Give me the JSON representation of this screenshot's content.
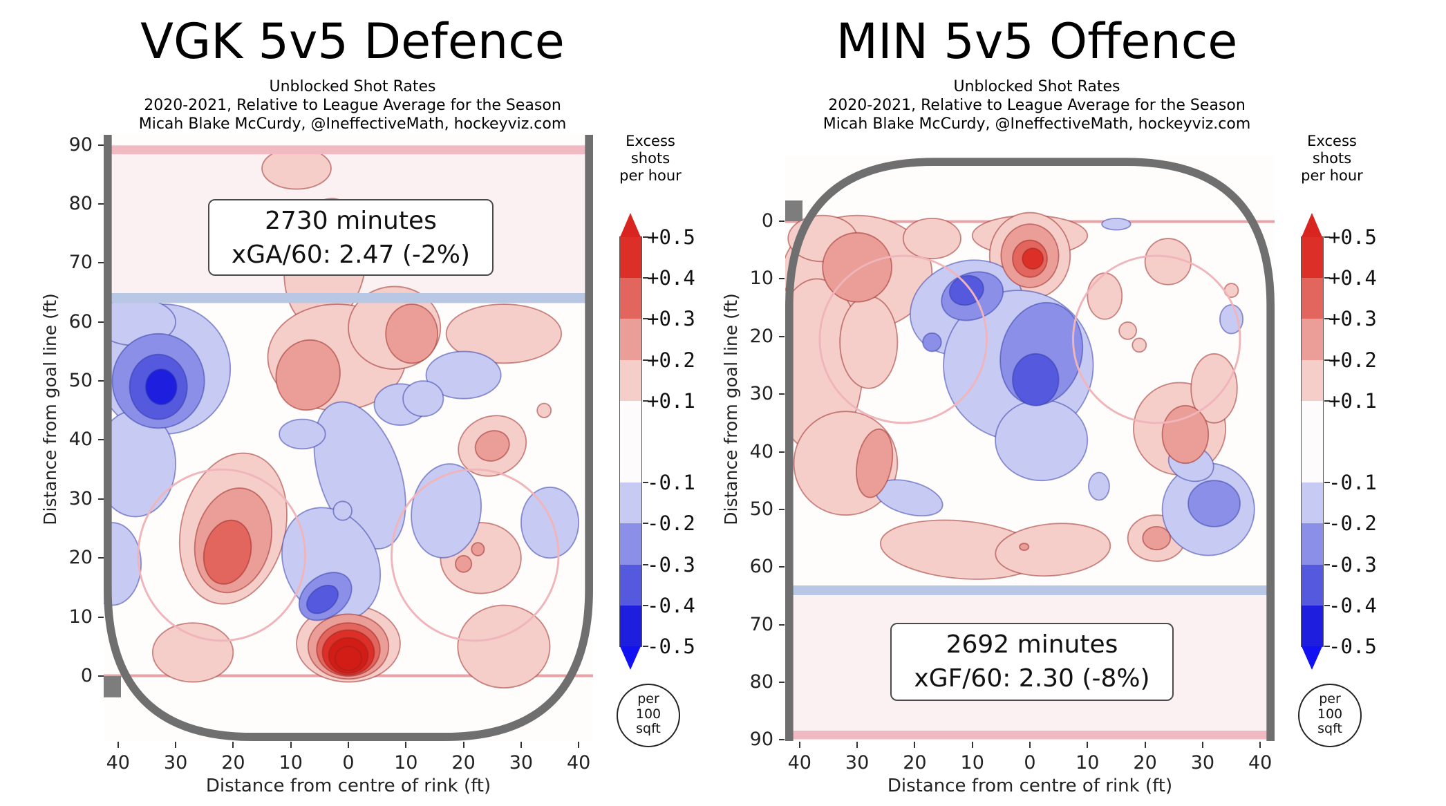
{
  "colorbar": {
    "title_lines": [
      "Excess",
      "shots",
      "per hour"
    ],
    "tick_labels": [
      "+0.5",
      "+0.4",
      "+0.3",
      "+0.2",
      "+0.1",
      "-0.1",
      "-0.2",
      "-0.3",
      "-0.4",
      "-0.5"
    ],
    "segment_colors_top_to_bottom": [
      "#dc2f28",
      "#e2655e",
      "#eb9d98",
      "#f5cdc9",
      "#fdfbfb",
      "#c7caf2",
      "#8b8fe8",
      "#5559de",
      "#1e1ede"
    ],
    "arrow_top_color": "#d8251f",
    "arrow_bottom_color": "#1111f2",
    "footer_lines": [
      "per",
      "100",
      "sqft"
    ]
  },
  "chart_data": {
    "type": "heatmap",
    "units": "excess unblocked shots per hour per 100 sqft, relative to league average",
    "level_scale": "hotspot level n covers roughly +/-0.1*n to 0.1*(n+1) excess shots per hour; positive = red (more shots), negative = blue (fewer shots)",
    "level_colors": {
      "1": "#f5cdc9",
      "2": "#eb9d98",
      "3": "#e2655e",
      "4": "#dc2f28",
      "5": "#d11d16",
      "-1": "#c7caf2",
      "-2": "#8b8fe8",
      "-3": "#5559de",
      "-4": "#1e1ede",
      "-5": "#1111f2"
    },
    "panels": [
      {
        "title": "VGK 5v5 Defence",
        "subtitle_lines": [
          "Unblocked Shot Rates",
          "2020-2021, Relative to League Average for the Season",
          "Micah Blake McCurdy, @IneffectiveMath, hockeyviz.com"
        ],
        "annotation_lines": [
          "2730 minutes",
          "xGA/60: 2.47 (-2%)"
        ],
        "minutes": 2730,
        "xg_per_60": 2.47,
        "xg_vs_league_pct": "-2%",
        "orientation": "goal-at-bottom",
        "xlabel": "Distance from centre of rink (ft)",
        "ylabel": "Distance from goal line (ft)",
        "x_ticks": [
          -40,
          -30,
          -20,
          -10,
          0,
          10,
          20,
          30,
          40
        ],
        "x_tick_labels": [
          "40",
          "30",
          "20",
          "10",
          "0",
          "10",
          "20",
          "30",
          "40"
        ],
        "y_ticks": [
          90,
          80,
          70,
          60,
          50,
          40,
          30,
          20,
          10,
          0
        ],
        "hotspots": [
          [
            -9,
            86,
            6,
            3.5,
            0,
            1
          ],
          [
            -4,
            70,
            7,
            11,
            10,
            1
          ],
          [
            -2,
            54,
            12,
            9,
            0,
            1
          ],
          [
            8,
            59,
            8,
            7,
            0,
            1
          ],
          [
            27,
            58,
            10,
            5,
            0,
            1
          ],
          [
            -20,
            25,
            9,
            13,
            15,
            1
          ],
          [
            23,
            20,
            7,
            6,
            0,
            1
          ],
          [
            25,
            39,
            6,
            5,
            -20,
            1
          ],
          [
            1,
            42,
            1.5,
            1.5,
            0,
            1
          ],
          [
            -27,
            4,
            7,
            5,
            0,
            1
          ],
          [
            27,
            5,
            8,
            7,
            0,
            1
          ],
          [
            34,
            45,
            1.2,
            1.2,
            0,
            1
          ],
          [
            0,
            5.5,
            9,
            6.5,
            0,
            1
          ],
          [
            -7,
            51,
            5.5,
            6,
            20,
            2
          ],
          [
            11,
            58,
            4.5,
            5,
            0,
            2
          ],
          [
            -20,
            23,
            6.5,
            9,
            15,
            2
          ],
          [
            0,
            5,
            7,
            5.5,
            0,
            2
          ],
          [
            20,
            19,
            1.4,
            1.4,
            0,
            2
          ],
          [
            22.5,
            21.5,
            1.1,
            1.1,
            0,
            2
          ],
          [
            25,
            39,
            3,
            2.5,
            -20,
            2
          ],
          [
            -21,
            21,
            4,
            5.5,
            15,
            3
          ],
          [
            0,
            4.5,
            5.5,
            4.5,
            0,
            3
          ],
          [
            0,
            4,
            4.5,
            3.8,
            0,
            4
          ],
          [
            0,
            3.5,
            3.4,
            3,
            0,
            5
          ],
          [
            0,
            3,
            2.3,
            2,
            0,
            5
          ],
          [
            -32,
            52,
            11.5,
            11,
            0,
            -1
          ],
          [
            -37,
            36,
            7,
            9,
            0,
            -1
          ],
          [
            -41,
            19,
            5,
            7,
            0,
            -1
          ],
          [
            2,
            34,
            7,
            13,
            -20,
            -1
          ],
          [
            -3,
            19,
            8,
            10,
            -30,
            -1
          ],
          [
            9,
            46,
            4.5,
            3.5,
            0,
            -1
          ],
          [
            -8,
            41,
            4,
            2.5,
            0,
            -1
          ],
          [
            17,
            28,
            6,
            8,
            10,
            -1
          ],
          [
            35,
            26,
            5,
            6,
            0,
            -1
          ],
          [
            20,
            51,
            6.5,
            4,
            0,
            -1
          ],
          [
            13,
            47,
            3.5,
            3,
            0,
            -1
          ],
          [
            -1,
            28,
            1.6,
            1.6,
            0,
            -1
          ],
          [
            -37,
            60,
            7,
            4,
            0,
            -1
          ],
          [
            -33,
            50,
            8,
            8,
            0,
            -2
          ],
          [
            -4,
            13.5,
            5,
            3.5,
            -35,
            -2
          ],
          [
            -33,
            49,
            5,
            5.5,
            0,
            -3
          ],
          [
            -4.5,
            13,
            3,
            2,
            -35,
            -3
          ],
          [
            -32.5,
            49,
            2.7,
            3,
            0,
            -4
          ]
        ]
      },
      {
        "title": "MIN 5v5 Offence",
        "subtitle_lines": [
          "Unblocked Shot Rates",
          "2020-2021, Relative to League Average for the Season",
          "Micah Blake McCurdy, @IneffectiveMath, hockeyviz.com"
        ],
        "annotation_lines": [
          "2692 minutes",
          "xGF/60: 2.30 (-8%)"
        ],
        "minutes": 2692,
        "xg_per_60": 2.3,
        "xg_vs_league_pct": "-8%",
        "orientation": "goal-at-top",
        "xlabel": "Distance from centre of rink (ft)",
        "ylabel": "Distance from goal line (ft)",
        "x_ticks": [
          -40,
          -30,
          -20,
          -10,
          0,
          10,
          20,
          30,
          40
        ],
        "x_tick_labels": [
          "40",
          "30",
          "20",
          "10",
          "0",
          "10",
          "20",
          "30",
          "40"
        ],
        "y_ticks": [
          0,
          10,
          20,
          30,
          40,
          50,
          60,
          70,
          80,
          90
        ],
        "hotspots": [
          [
            0,
            2.5,
            10,
            3.5,
            0,
            1
          ],
          [
            0,
            6,
            7,
            7.5,
            0,
            1
          ],
          [
            -30,
            9,
            13,
            10,
            0,
            1
          ],
          [
            -36,
            3,
            6,
            4,
            0,
            1
          ],
          [
            -37,
            25,
            8,
            15,
            0,
            1
          ],
          [
            -28,
            21,
            5,
            8,
            0,
            1
          ],
          [
            -32,
            42,
            9,
            9,
            0,
            1
          ],
          [
            -17,
            3,
            5,
            3.5,
            0,
            1
          ],
          [
            24,
            7,
            4,
            4,
            0,
            1
          ],
          [
            13,
            13,
            3,
            4,
            0,
            1
          ],
          [
            17,
            19,
            1.5,
            1.5,
            0,
            1
          ],
          [
            19,
            21.5,
            1.2,
            1.2,
            0,
            1
          ],
          [
            26,
            36,
            8,
            8,
            0,
            1
          ],
          [
            32,
            29,
            4,
            6,
            0,
            1
          ],
          [
            -12,
            57,
            14,
            5,
            5,
            1
          ],
          [
            4,
            57,
            10,
            4.5,
            -5,
            1
          ],
          [
            22,
            55,
            5,
            4,
            0,
            1
          ],
          [
            35,
            12,
            1.2,
            1.2,
            0,
            1
          ],
          [
            0,
            6,
            5,
            5.5,
            0,
            2
          ],
          [
            -30,
            8,
            6,
            6,
            0,
            2
          ],
          [
            -27,
            42,
            3,
            6,
            10,
            2
          ],
          [
            27,
            37,
            4,
            5,
            0,
            2
          ],
          [
            22,
            55,
            2.4,
            2,
            0,
            2
          ],
          [
            -1,
            56.5,
            0.8,
            0.6,
            0,
            2
          ],
          [
            0,
            6.5,
            3,
            3.2,
            0,
            3
          ],
          [
            0.5,
            6.5,
            1.8,
            1.8,
            0,
            4
          ],
          [
            -11,
            15,
            10,
            8,
            -20,
            -1
          ],
          [
            -2,
            25,
            13,
            13,
            0,
            -1
          ],
          [
            2,
            38,
            8,
            7,
            0,
            -1
          ],
          [
            -21,
            48,
            6,
            2.8,
            15,
            -1
          ],
          [
            12,
            46,
            1.8,
            2.4,
            0,
            -1
          ],
          [
            31,
            50,
            8,
            8,
            0,
            -1
          ],
          [
            28,
            42,
            4,
            3,
            20,
            -1
          ],
          [
            35,
            17,
            2,
            2.5,
            0,
            -1
          ],
          [
            15,
            0.5,
            2.5,
            1,
            0,
            -1
          ],
          [
            -10,
            13,
            5.5,
            4,
            -20,
            -2
          ],
          [
            2,
            23,
            7,
            9,
            15,
            -2
          ],
          [
            -17,
            21,
            1.6,
            1.6,
            0,
            -2
          ],
          [
            32,
            49,
            4.5,
            4,
            0,
            -2
          ],
          [
            -11,
            12,
            3,
            2.5,
            -20,
            -3
          ],
          [
            1,
            27.5,
            4,
            4.5,
            0,
            -3
          ]
        ]
      }
    ]
  }
}
